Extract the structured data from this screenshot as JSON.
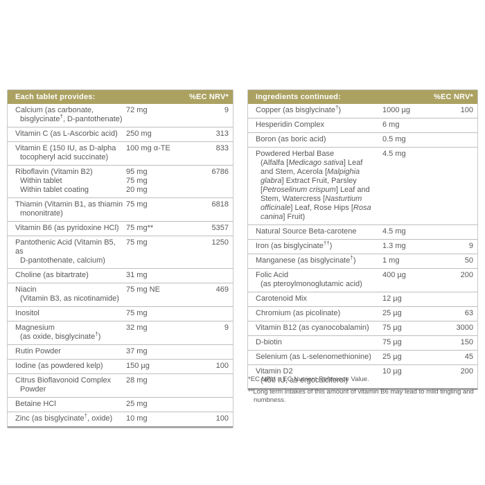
{
  "colors": {
    "header_bg": "#aba161",
    "header_text": "#ffffff",
    "body_text": "#57585a",
    "row_divider": "#bcbdbe",
    "table_border": "#c7c8c9"
  },
  "left_table": {
    "header": {
      "title": "Each tablet provides:",
      "nrv_label": "%EC NRV*"
    },
    "rows": [
      {
        "name_lines": [
          "Calcium (as carbonate,",
          "bisglycinate†, D-pantothenate)"
        ],
        "amount_lines": [
          "72 mg"
        ],
        "nrv": "9"
      },
      {
        "name_lines": [
          "Vitamin C (as L-Ascorbic acid)"
        ],
        "amount_lines": [
          "250 mg"
        ],
        "nrv": "313"
      },
      {
        "name_lines": [
          "Vitamin E (150 IU, as D-alpha",
          "tocopheryl acid succinate)"
        ],
        "amount_lines": [
          "100 mg α-TE"
        ],
        "nrv": "833"
      },
      {
        "name_lines": [
          "Riboflavin (Vitamin B2)",
          "Within tablet",
          "Within tablet coating"
        ],
        "amount_lines": [
          "95 mg",
          "75 mg",
          "20 mg"
        ],
        "nrv": "6786"
      },
      {
        "name_lines": [
          "Thiamin (Vitamin B1, as thiamin",
          "mononitrate)"
        ],
        "amount_lines": [
          "75 mg"
        ],
        "nrv": "6818"
      },
      {
        "name_lines": [
          "Vitamin B6 (as pyridoxine HCl)"
        ],
        "amount_lines": [
          "75 mg**"
        ],
        "nrv": "5357"
      },
      {
        "name_lines": [
          "Pantothenic Acid (Vitamin B5, as",
          "D-pantothenate, calcium)"
        ],
        "amount_lines": [
          "75 mg"
        ],
        "nrv": "1250"
      },
      {
        "name_lines": [
          "Choline (as bitartrate)"
        ],
        "amount_lines": [
          "31 mg"
        ],
        "nrv": ""
      },
      {
        "name_lines": [
          "Niacin",
          "(Vitamin B3, as nicotinamide)"
        ],
        "amount_lines": [
          "75 mg NE"
        ],
        "nrv": "469"
      },
      {
        "name_lines": [
          "Inositol"
        ],
        "amount_lines": [
          "75 mg"
        ],
        "nrv": ""
      },
      {
        "name_lines": [
          "Magnesium",
          "(as oxide, bisglycinate†)"
        ],
        "amount_lines": [
          "32 mg"
        ],
        "nrv": "9"
      },
      {
        "name_lines": [
          "Rutin Powder"
        ],
        "amount_lines": [
          "37 mg"
        ],
        "nrv": ""
      },
      {
        "name_lines": [
          "Iodine (as powdered kelp)"
        ],
        "amount_lines": [
          "150 µg"
        ],
        "nrv": "100"
      },
      {
        "name_lines": [
          "Citrus Bioflavonoid Complex",
          "Powder"
        ],
        "amount_lines": [
          "28 mg"
        ],
        "nrv": ""
      },
      {
        "name_lines": [
          "Betaine HCl"
        ],
        "amount_lines": [
          "25 mg"
        ],
        "nrv": ""
      },
      {
        "name_lines": [
          "Zinc (as bisglycinate†, oxide)"
        ],
        "amount_lines": [
          "10 mg"
        ],
        "nrv": "100"
      }
    ]
  },
  "right_table": {
    "header": {
      "title": "Ingredients continued:",
      "nrv_label": "%EC NRV*"
    },
    "rows": [
      {
        "name_lines": [
          "Copper (as bisglycinate†)"
        ],
        "amount_lines": [
          "1000 µg"
        ],
        "nrv": "100"
      },
      {
        "name_lines": [
          "Hesperidin Complex"
        ],
        "amount_lines": [
          "6 mg"
        ],
        "nrv": ""
      },
      {
        "name_lines": [
          "Boron (as boric acid)"
        ],
        "amount_lines": [
          "0.5 mg"
        ],
        "nrv": ""
      },
      {
        "name_lines": [
          "Powdered Herbal Base",
          "(Alfalfa [*Medicago sativa*] Leaf",
          "and Stem, Acerola [*Malpighia*",
          "*glabra*] Extract Fruit, Parsley",
          "[*Petroselinum crispum*] Leaf and",
          "Stem, Watercress [*Nasturtium*",
          "*officinale*] Leaf, Rose Hips [*Rosa*",
          "*canina*] Fruit)"
        ],
        "amount_lines": [
          "4.5 mg"
        ],
        "nrv": ""
      },
      {
        "name_lines": [
          "Natural Source Beta-carotene"
        ],
        "amount_lines": [
          "4.5 mg"
        ],
        "nrv": ""
      },
      {
        "name_lines": [
          "Iron (as bisglycinate††)"
        ],
        "amount_lines": [
          "1.3 mg"
        ],
        "nrv": "9"
      },
      {
        "name_lines": [
          "Manganese (as bisglycinate†)"
        ],
        "amount_lines": [
          "1 mg"
        ],
        "nrv": "50"
      },
      {
        "name_lines": [
          "Folic Acid",
          "(as pteroylmonoglutamic acid)"
        ],
        "amount_lines": [
          "400 µg"
        ],
        "nrv": "200"
      },
      {
        "name_lines": [
          "Carotenoid Mix"
        ],
        "amount_lines": [
          "12 µg"
        ],
        "nrv": ""
      },
      {
        "name_lines": [
          "Chromium (as picolinate)"
        ],
        "amount_lines": [
          "25 µg"
        ],
        "nrv": "63"
      },
      {
        "name_lines": [
          "Vitamin B12 (as cyanocobalamin)"
        ],
        "amount_lines": [
          "75 µg"
        ],
        "nrv": "3000"
      },
      {
        "name_lines": [
          "D-biotin"
        ],
        "amount_lines": [
          "75 µg"
        ],
        "nrv": "150"
      },
      {
        "name_lines": [
          "Selenium (as L-selenomethionine)"
        ],
        "amount_lines": [
          "25 µg"
        ],
        "nrv": "45"
      },
      {
        "name_lines": [
          "Vitamin D2",
          "(400 IU, as ergocalciferol)"
        ],
        "amount_lines": [
          "10 µg"
        ],
        "nrv": "200"
      }
    ]
  },
  "footnotes": [
    "*EC NRV = EC Nutrient Reference Value.",
    "**Long term intakes of this amount of vitamin B6 may lead to mild tingling and numbness."
  ]
}
